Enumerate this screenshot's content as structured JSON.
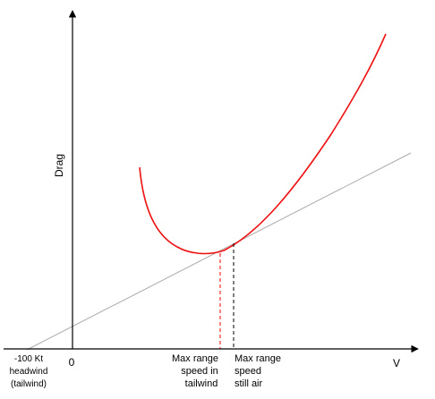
{
  "chart_data": {
    "type": "line",
    "title": "",
    "xlabel": "V",
    "ylabel": "Drag",
    "origin_label": "0",
    "headwind_label": [
      "-100 Kt",
      "headwind",
      "(tailwind)"
    ],
    "markers": [
      {
        "name": "tailwind",
        "lines": [
          "Max range",
          "speed in",
          "tailwind"
        ],
        "color": "#ff0000"
      },
      {
        "name": "still-air",
        "lines": [
          "Max range",
          "speed",
          "still air"
        ],
        "color": "#000000"
      }
    ],
    "colors": {
      "drag_curve": "#ee1111",
      "tangent_line": "#aaaaaa",
      "axes": "#000000"
    }
  }
}
